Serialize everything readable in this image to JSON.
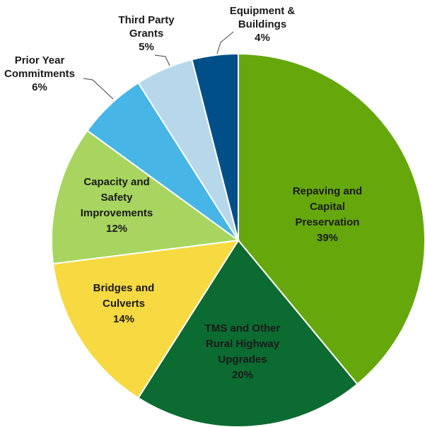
{
  "chart_data": {
    "type": "pie",
    "title": "",
    "slices": [
      {
        "name_lines": [
          "Repaving and",
          "Capital",
          "Preservation"
        ],
        "value_label": "39%",
        "value": 39,
        "color": "#66A70C"
      },
      {
        "name_lines": [
          "TMS and Other",
          "Rural Highway",
          "Upgrades"
        ],
        "value_label": "20%",
        "value": 20,
        "color": "#0B6B31"
      },
      {
        "name_lines": [
          "Bridges and",
          "Culverts"
        ],
        "value_label": "14%",
        "value": 14,
        "color": "#F7D942"
      },
      {
        "name_lines": [
          "Capacity and",
          "Safety",
          "Improvements"
        ],
        "value_label": "12%",
        "value": 12,
        "color": "#A7D55F"
      },
      {
        "name_lines": [
          "Prior Year",
          "Commitments"
        ],
        "value_label": "6%",
        "value": 6,
        "color": "#47B5E6"
      },
      {
        "name_lines": [
          "Third Party",
          "Grants"
        ],
        "value_label": "5%",
        "value": 5,
        "color": "#B7D7EA"
      },
      {
        "name_lines": [
          "Equipment &",
          "Buildings"
        ],
        "value_label": "4%",
        "value": 4,
        "color": "#004F88"
      }
    ]
  }
}
